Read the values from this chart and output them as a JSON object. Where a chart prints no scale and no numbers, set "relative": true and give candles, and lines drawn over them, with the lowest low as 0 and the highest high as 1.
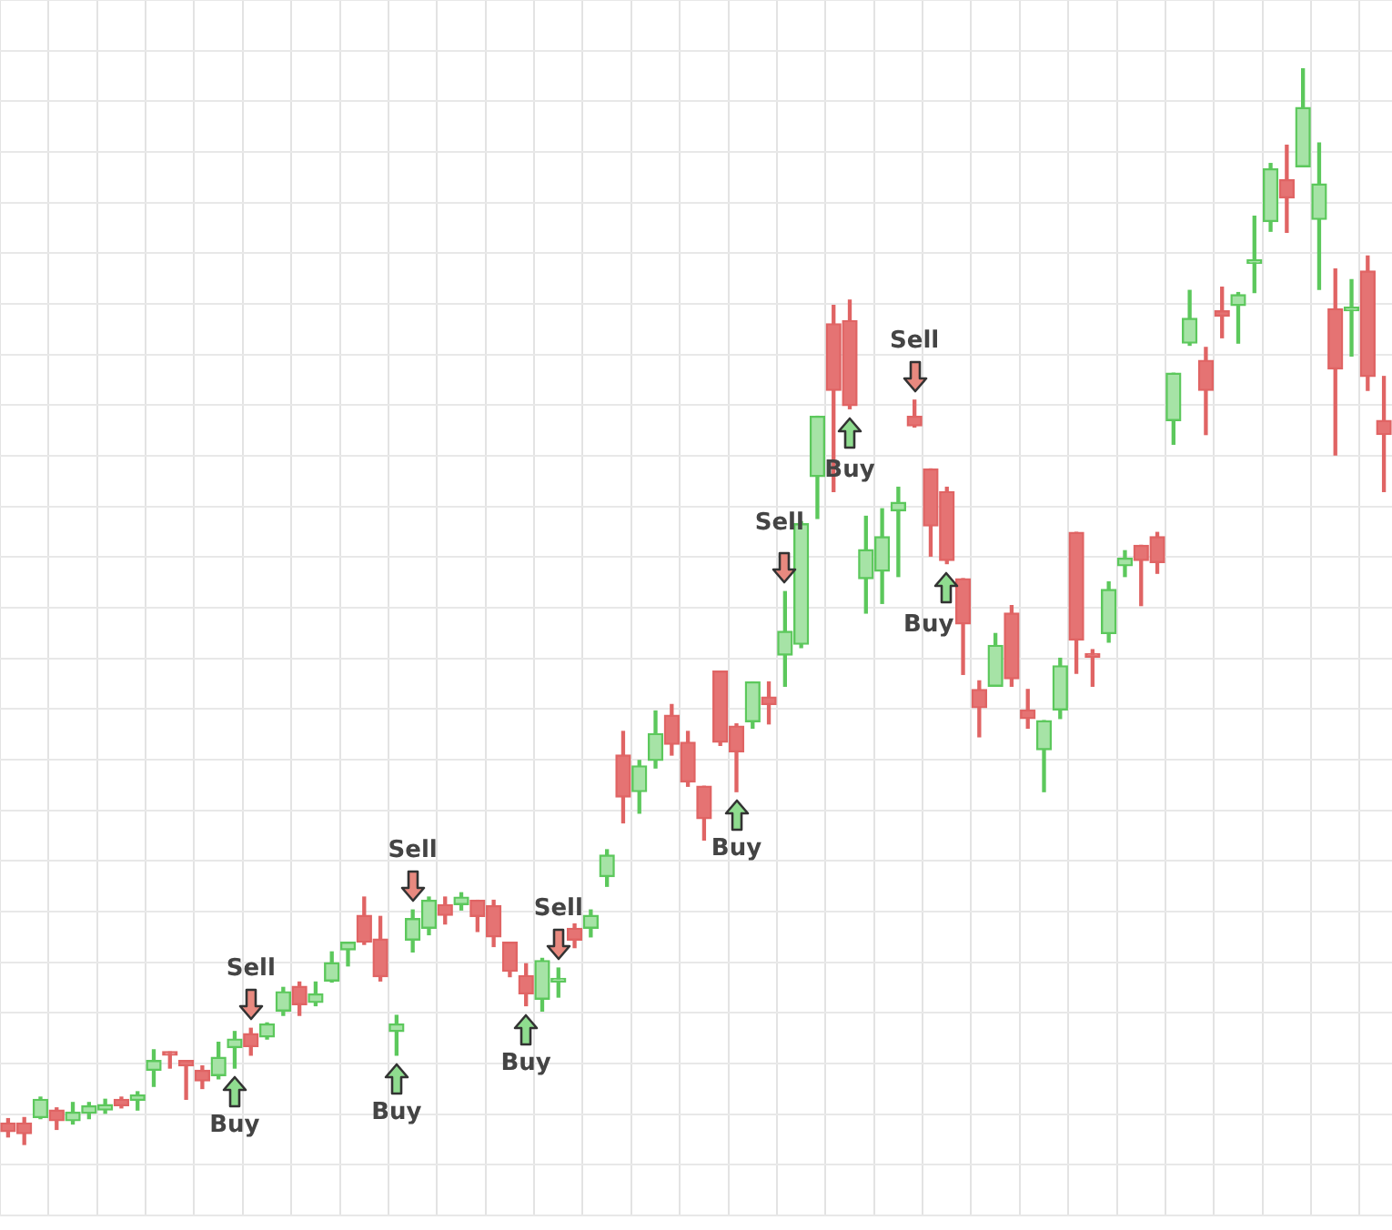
{
  "chart_data": {
    "type": "candlestick",
    "relative": true,
    "grid": true,
    "legend": false,
    "categories": [
      null,
      null,
      null,
      null,
      null,
      null,
      null,
      null,
      null,
      null,
      null,
      null,
      null,
      null,
      null,
      null,
      null,
      null,
      null,
      null,
      null,
      null,
      null,
      null,
      null,
      null,
      null,
      null,
      null,
      null,
      null,
      null,
      null,
      null,
      null,
      null,
      null,
      null,
      null,
      null,
      null,
      null,
      null,
      null,
      null,
      null,
      null,
      null,
      null,
      null,
      null,
      null,
      null,
      null,
      null,
      null,
      null,
      null,
      null,
      null,
      null,
      null,
      null,
      null,
      null,
      null,
      null,
      null,
      null,
      null,
      null,
      null,
      null,
      null,
      null,
      null,
      null,
      null,
      null,
      null,
      null,
      null,
      null,
      null,
      null,
      null
    ],
    "ohlc": [
      [
        0.02,
        0.024,
        0.007,
        0.012
      ],
      [
        0.02,
        0.025,
        0,
        0.01
      ],
      [
        0.025,
        0.044,
        0.024,
        0.042
      ],
      [
        0.032,
        0.034,
        0.014,
        0.022
      ],
      [
        0.022,
        0.039,
        0.019,
        0.03
      ],
      [
        0.029,
        0.039,
        0.024,
        0.036
      ],
      [
        0.032,
        0.042,
        0.029,
        0.037
      ],
      [
        0.042,
        0.044,
        0.034,
        0.036
      ],
      [
        0.041,
        0.049,
        0.032,
        0.046
      ],
      [
        0.069,
        0.088,
        0.054,
        0.078
      ],
      [
        0.086,
        0.086,
        0.071,
        0.083
      ],
      [
        0.078,
        0.078,
        0.042,
        0.073
      ],
      [
        0.069,
        0.073,
        0.052,
        0.059
      ],
      [
        0.064,
        0.095,
        0.061,
        0.081
      ],
      [
        0.09,
        0.105,
        0.071,
        0.098
      ],
      [
        0.103,
        0.108,
        0.083,
        0.091
      ],
      [
        0.1,
        0.113,
        0.098,
        0.112
      ],
      [
        0.124,
        0.146,
        0.12,
        0.142
      ],
      [
        0.147,
        0.151,
        0.12,
        0.13
      ],
      [
        0.132,
        0.151,
        0.129,
        0.14
      ],
      [
        0.152,
        0.179,
        0.151,
        0.169
      ],
      [
        0.181,
        0.188,
        0.166,
        0.188
      ],
      [
        0.213,
        0.23,
        0.186,
        0.188
      ],
      [
        0.191,
        0.212,
        0.152,
        0.156
      ],
      [
        0.105,
        0.12,
        0.083,
        0.112
      ],
      [
        0.19,
        0.218,
        0.179,
        0.21
      ],
      [
        0.201,
        0.23,
        0.195,
        0.227
      ],
      [
        0.223,
        0.23,
        0.205,
        0.213
      ],
      [
        0.223,
        0.234,
        0.218,
        0.23
      ],
      [
        0.227,
        0.227,
        0.198,
        0.212
      ],
      [
        0.222,
        0.227,
        0.184,
        0.193
      ],
      [
        0.188,
        0.188,
        0.156,
        0.161
      ],
      [
        0.157,
        0.168,
        0.129,
        0.14
      ],
      [
        0.135,
        0.173,
        0.124,
        0.171
      ],
      [
        0.151,
        0.164,
        0.137,
        0.152
      ],
      [
        0.201,
        0.205,
        0.183,
        0.19
      ],
      [
        0.201,
        0.218,
        0.193,
        0.213
      ],
      [
        0.249,
        0.274,
        0.24,
        0.269
      ],
      [
        0.362,
        0.384,
        0.299,
        0.323
      ],
      [
        0.328,
        0.357,
        0.308,
        0.352
      ],
      [
        0.357,
        0.403,
        0.35,
        0.382
      ],
      [
        0.399,
        0.409,
        0.362,
        0.372
      ],
      [
        0.374,
        0.384,
        0.333,
        0.337
      ],
      [
        0.333,
        0.333,
        0.283,
        0.303
      ],
      [
        0.44,
        0.44,
        0.371,
        0.374
      ],
      [
        0.389,
        0.391,
        0.328,
        0.365
      ],
      [
        0.393,
        0.43,
        0.387,
        0.43
      ],
      [
        0.416,
        0.43,
        0.391,
        0.409
      ],
      [
        0.455,
        0.514,
        0.426,
        0.477
      ],
      [
        0.465,
        0.579,
        0.462,
        0.577
      ],
      [
        0.621,
        0.677,
        0.582,
        0.677
      ],
      [
        0.763,
        0.78,
        0.607,
        0.701
      ],
      [
        0.766,
        0.785,
        0.684,
        0.687
      ],
      [
        0.526,
        0.584,
        0.494,
        0.553
      ],
      [
        0.533,
        0.591,
        0.503,
        0.565
      ],
      [
        0.589,
        0.611,
        0.528,
        0.597
      ],
      [
        0.677,
        0.692,
        0.667,
        0.668
      ],
      [
        0.628,
        0.628,
        0.547,
        0.575
      ],
      [
        0.607,
        0.611,
        0.54,
        0.543
      ],
      [
        0.526,
        0.526,
        0.437,
        0.484
      ],
      [
        0.423,
        0.431,
        0.379,
        0.406
      ],
      [
        0.426,
        0.475,
        0.426,
        0.464
      ],
      [
        0.494,
        0.501,
        0.426,
        0.433
      ],
      [
        0.404,
        0.423,
        0.387,
        0.396
      ],
      [
        0.367,
        0.394,
        0.328,
        0.394
      ],
      [
        0.404,
        0.452,
        0.396,
        0.445
      ],
      [
        0.569,
        0.569,
        0.438,
        0.469
      ],
      [
        0.455,
        0.46,
        0.426,
        0.453
      ],
      [
        0.475,
        0.523,
        0.467,
        0.516
      ],
      [
        0.538,
        0.552,
        0.528,
        0.545
      ],
      [
        0.557,
        0.557,
        0.501,
        0.543
      ],
      [
        0.565,
        0.569,
        0.531,
        0.541
      ],
      [
        0.673,
        0.717,
        0.651,
        0.717
      ],
      [
        0.745,
        0.794,
        0.743,
        0.768
      ],
      [
        0.729,
        0.741,
        0.66,
        0.701
      ],
      [
        0.775,
        0.797,
        0.75,
        0.77
      ],
      [
        0.78,
        0.792,
        0.745,
        0.79
      ],
      [
        0.819,
        0.863,
        0.792,
        0.821
      ],
      [
        0.858,
        0.912,
        0.849,
        0.907
      ],
      [
        0.897,
        0.929,
        0.848,
        0.88
      ],
      [
        0.909,
        1,
        0.909,
        0.964
      ],
      [
        0.86,
        0.931,
        0.795,
        0.893
      ],
      [
        0.777,
        0.814,
        0.641,
        0.721
      ],
      [
        0.775,
        0.804,
        0.733,
        0.778
      ],
      [
        0.812,
        0.826,
        0.701,
        0.714
      ],
      [
        0.673,
        0.714,
        0.607,
        0.66
      ]
    ],
    "annotations": [
      "Buy",
      "Sell",
      "Buy",
      "Sell",
      "Buy",
      "Sell",
      "Buy",
      "Sell",
      "Buy",
      "Sell",
      "Buy"
    ]
  }
}
